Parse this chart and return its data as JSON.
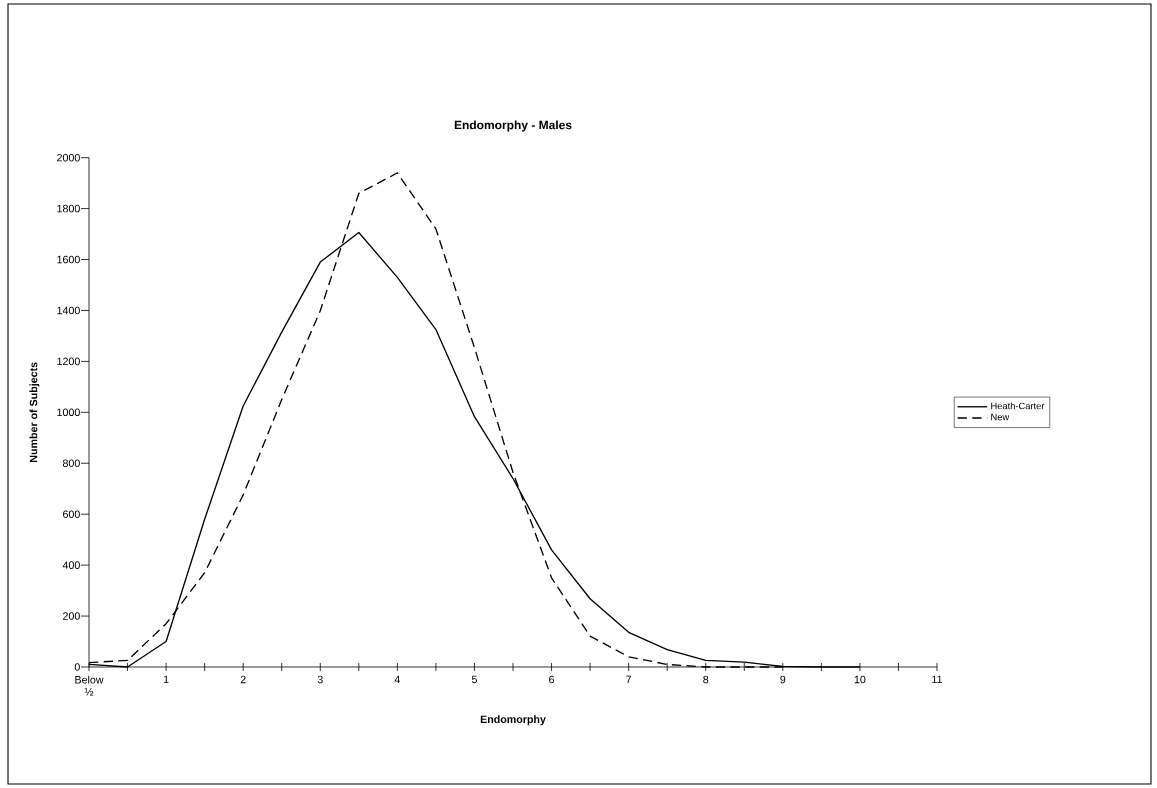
{
  "chart_data": {
    "type": "line",
    "title": "Endomorphy - Males",
    "xlabel": "Endomorphy",
    "ylabel": "Number of Subjects",
    "categories": [
      "Below ½",
      null,
      "1",
      null,
      "2",
      null,
      "3",
      null,
      "4",
      null,
      "5",
      null,
      "6",
      null,
      "7",
      null,
      "8",
      null,
      "9",
      null,
      "10",
      null,
      "11"
    ],
    "series": [
      {
        "name": "Heath-Carter",
        "color": "#000000",
        "line_style": "solid",
        "values": [
          10,
          0,
          100,
          580,
          1025,
          1315,
          1590,
          1706,
          1530,
          1325,
          983,
          740,
          460,
          268,
          136,
          68,
          26,
          19,
          2,
          0,
          0,
          null,
          null
        ]
      },
      {
        "name": "New",
        "color": "#000000",
        "line_style": "dashed",
        "values": [
          17,
          26,
          170,
          370,
          676,
          1050,
          1399,
          1860,
          1940,
          1720,
          1254,
          764,
          350,
          121,
          40,
          10,
          0,
          0,
          0,
          null,
          null,
          null,
          null
        ]
      }
    ],
    "ylim": [
      0,
      2000
    ],
    "yticks": [
      0,
      200,
      400,
      600,
      800,
      1000,
      1200,
      1400,
      1600,
      1800,
      2000
    ],
    "grid": false,
    "legend": "right",
    "marker": "none"
  }
}
